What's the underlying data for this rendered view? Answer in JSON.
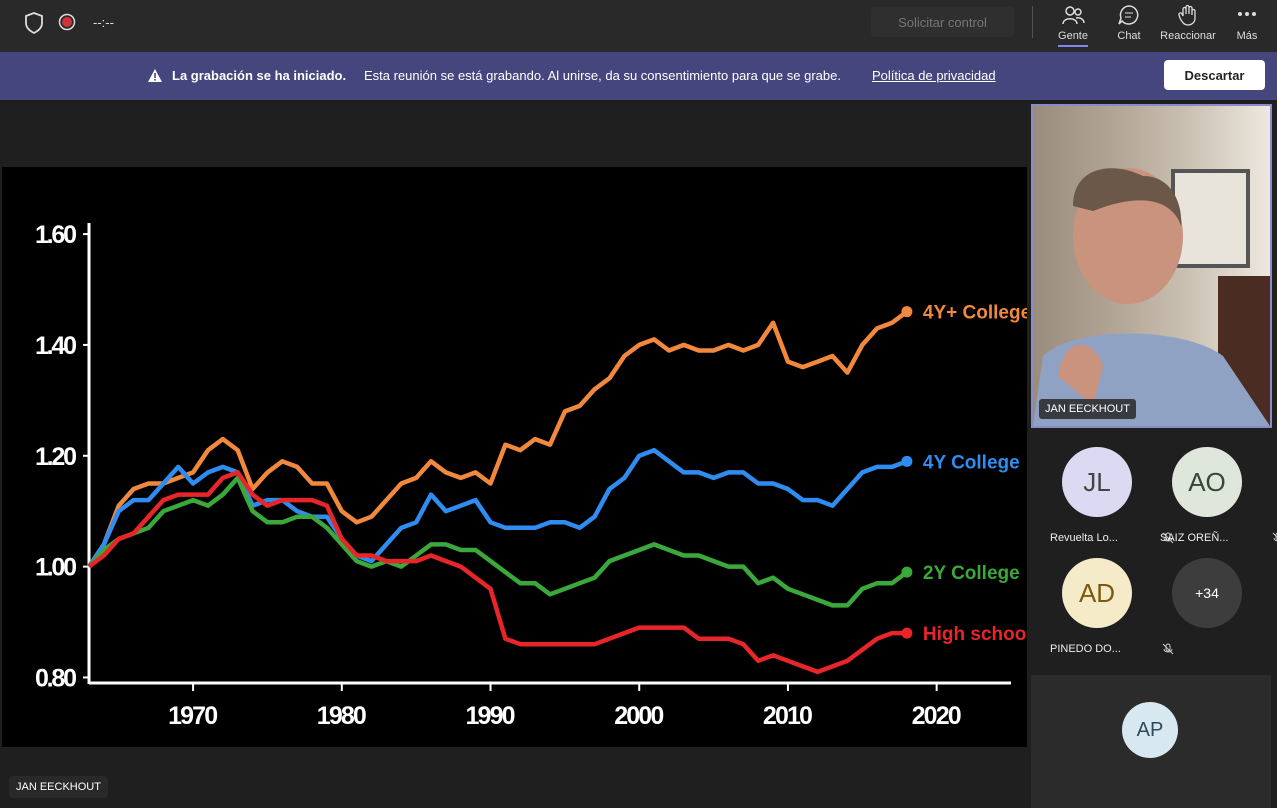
{
  "top_bar": {
    "timer": "--:--",
    "request_control": "Solicitar control",
    "nav": [
      "Gente",
      "Chat",
      "Reaccionar",
      "Más"
    ]
  },
  "banner": {
    "title": "La grabación se ha iniciado.",
    "message": "Esta reunión se está grabando. Al unirse, da su consentimiento para que se grabe.",
    "link": "Política de privacidad",
    "dismiss": "Descartar"
  },
  "chart_data": {
    "type": "line",
    "x": [
      1963,
      1964,
      1965,
      1966,
      1967,
      1968,
      1969,
      1970,
      1971,
      1972,
      1973,
      1974,
      1975,
      1976,
      1977,
      1978,
      1979,
      1980,
      1981,
      1982,
      1983,
      1984,
      1985,
      1986,
      1987,
      1988,
      1989,
      1990,
      1991,
      1992,
      1993,
      1994,
      1995,
      1996,
      1997,
      1998,
      1999,
      2000,
      2001,
      2002,
      2003,
      2004,
      2005,
      2006,
      2007,
      2008,
      2009,
      2010,
      2011,
      2012,
      2013,
      2014,
      2015,
      2016,
      2017,
      2018
    ],
    "series": [
      {
        "name": "4Y+ College",
        "color": "#f0883e",
        "values": [
          1.0,
          1.04,
          1.11,
          1.14,
          1.15,
          1.15,
          1.16,
          1.17,
          1.21,
          1.23,
          1.21,
          1.14,
          1.17,
          1.19,
          1.18,
          1.15,
          1.15,
          1.1,
          1.08,
          1.09,
          1.12,
          1.15,
          1.16,
          1.19,
          1.17,
          1.16,
          1.17,
          1.15,
          1.22,
          1.21,
          1.23,
          1.22,
          1.28,
          1.29,
          1.32,
          1.34,
          1.38,
          1.4,
          1.41,
          1.39,
          1.4,
          1.39,
          1.39,
          1.4,
          1.39,
          1.4,
          1.44,
          1.37,
          1.36,
          1.37,
          1.38,
          1.35,
          1.4,
          1.43,
          1.44,
          1.46
        ]
      },
      {
        "name": "4Y College",
        "color": "#2f8cf0",
        "values": [
          1.0,
          1.04,
          1.1,
          1.12,
          1.12,
          1.15,
          1.18,
          1.15,
          1.17,
          1.18,
          1.17,
          1.11,
          1.12,
          1.12,
          1.1,
          1.09,
          1.09,
          1.05,
          1.02,
          1.01,
          1.04,
          1.07,
          1.08,
          1.13,
          1.1,
          1.11,
          1.12,
          1.08,
          1.07,
          1.07,
          1.07,
          1.08,
          1.08,
          1.07,
          1.09,
          1.14,
          1.16,
          1.2,
          1.21,
          1.19,
          1.17,
          1.17,
          1.16,
          1.17,
          1.17,
          1.15,
          1.15,
          1.14,
          1.12,
          1.12,
          1.11,
          1.14,
          1.17,
          1.18,
          1.18,
          1.19
        ]
      },
      {
        "name": "2Y College",
        "color": "#3aa83a",
        "values": [
          1.0,
          1.03,
          1.05,
          1.06,
          1.07,
          1.1,
          1.11,
          1.12,
          1.11,
          1.13,
          1.16,
          1.1,
          1.08,
          1.08,
          1.09,
          1.09,
          1.07,
          1.04,
          1.01,
          1.0,
          1.01,
          1.0,
          1.02,
          1.04,
          1.04,
          1.03,
          1.03,
          1.01,
          0.99,
          0.97,
          0.97,
          0.95,
          0.96,
          0.97,
          0.98,
          1.01,
          1.02,
          1.03,
          1.04,
          1.03,
          1.02,
          1.02,
          1.01,
          1.0,
          1.0,
          0.97,
          0.98,
          0.96,
          0.95,
          0.94,
          0.93,
          0.93,
          0.96,
          0.97,
          0.97,
          0.99
        ]
      },
      {
        "name": "High school",
        "color": "#e8262a",
        "values": [
          1.0,
          1.02,
          1.05,
          1.06,
          1.09,
          1.12,
          1.13,
          1.13,
          1.13,
          1.16,
          1.17,
          1.13,
          1.11,
          1.12,
          1.12,
          1.12,
          1.11,
          1.05,
          1.02,
          1.02,
          1.01,
          1.01,
          1.01,
          1.02,
          1.01,
          1.0,
          0.98,
          0.96,
          0.87,
          0.86,
          0.86,
          0.86,
          0.86,
          0.86,
          0.86,
          0.87,
          0.88,
          0.89,
          0.89,
          0.89,
          0.89,
          0.87,
          0.87,
          0.87,
          0.86,
          0.83,
          0.84,
          0.83,
          0.82,
          0.81,
          0.82,
          0.83,
          0.85,
          0.87,
          0.88,
          0.88
        ]
      }
    ],
    "xlim": [
      1963,
      2025
    ],
    "xticks": [
      1970,
      1980,
      1990,
      2000,
      2010,
      2020
    ],
    "ylim": [
      0.79,
      1.62
    ],
    "yticks": [
      {
        "value": 0.8,
        "label": "0.80"
      },
      {
        "value": 1.0,
        "label": "1.00"
      },
      {
        "value": 1.2,
        "label": "1.20"
      },
      {
        "value": 1.4,
        "label": "1.40"
      },
      {
        "value": 1.6,
        "label": "1.60"
      }
    ],
    "grid": false
  },
  "presenter": "JAN EECKHOUT",
  "video": {
    "name": "JAN EECKHOUT"
  },
  "participants": [
    {
      "initials": "JL",
      "name": "Revuelta Lo...",
      "color": "#dcd9f3",
      "text": "#444"
    },
    {
      "initials": "AO",
      "name": "SAIZ OREÑ...",
      "color": "#dfe7dd",
      "text": "#354a35"
    },
    {
      "initials": "AD",
      "name": "PINEDO DO...",
      "color": "#f6ebc8",
      "text": "#7a5a10"
    },
    {
      "initials": "+34",
      "color": "#3d3d3d",
      "text": "#fff"
    },
    {
      "initials": "AP",
      "color": "#d7e8f0",
      "text": "#2c4a5a"
    }
  ]
}
